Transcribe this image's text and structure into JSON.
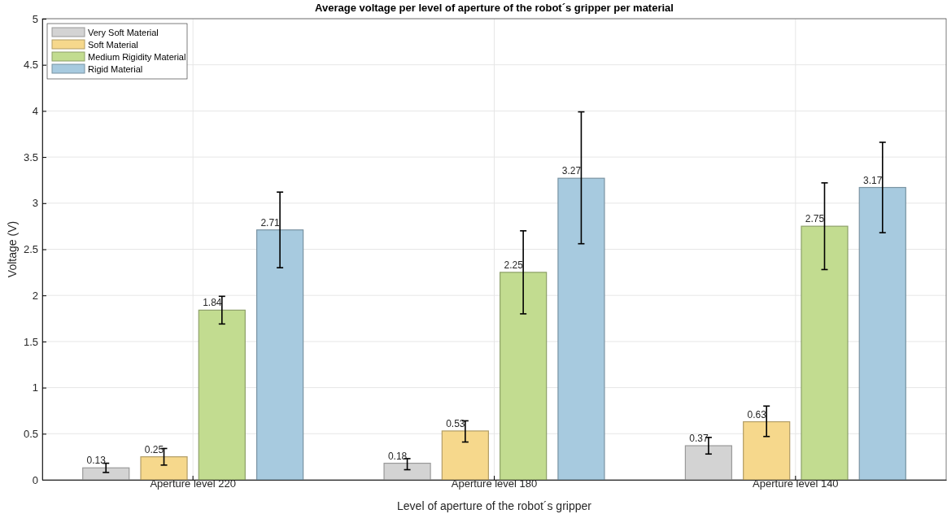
{
  "chart_data": {
    "type": "bar",
    "title": "Average voltage per level of aperture of the robot´s gripper per material",
    "xlabel": "Level of aperture of the robot´s gripper",
    "ylabel": "Voltage (V)",
    "categories": [
      "Aperture level 220",
      "Aperture level 180",
      "Aperture level 140"
    ],
    "series": [
      {
        "name": "Very Soft Material",
        "color": "#d3d3d3",
        "values": [
          0.13,
          0.18,
          0.37
        ],
        "errors": [
          [
            0.08,
            0.18
          ],
          [
            0.11,
            0.23
          ],
          [
            0.28,
            0.46
          ]
        ]
      },
      {
        "name": "Soft Material",
        "color": "#f6d88c",
        "values": [
          0.25,
          0.53,
          0.63
        ],
        "errors": [
          [
            0.16,
            0.34
          ],
          [
            0.41,
            0.64
          ],
          [
            0.47,
            0.8
          ]
        ]
      },
      {
        "name": "Medium Rigidity Material",
        "color": "#c2dc90",
        "values": [
          1.84,
          2.25,
          2.75
        ],
        "errors": [
          [
            1.69,
            1.99
          ],
          [
            1.8,
            2.7
          ],
          [
            2.28,
            3.22
          ]
        ]
      },
      {
        "name": "Rigid Material",
        "color": "#a7cadf",
        "values": [
          2.71,
          3.27,
          3.17
        ],
        "errors": [
          [
            2.3,
            3.12
          ],
          [
            2.56,
            3.99
          ],
          [
            2.68,
            3.66
          ]
        ]
      }
    ],
    "ylim": [
      0,
      5
    ],
    "yticks": [
      0,
      0.5,
      1,
      1.5,
      2,
      2.5,
      3,
      3.5,
      4,
      4.5,
      5
    ],
    "grid": true,
    "legend": "top left",
    "data_labels": true
  }
}
